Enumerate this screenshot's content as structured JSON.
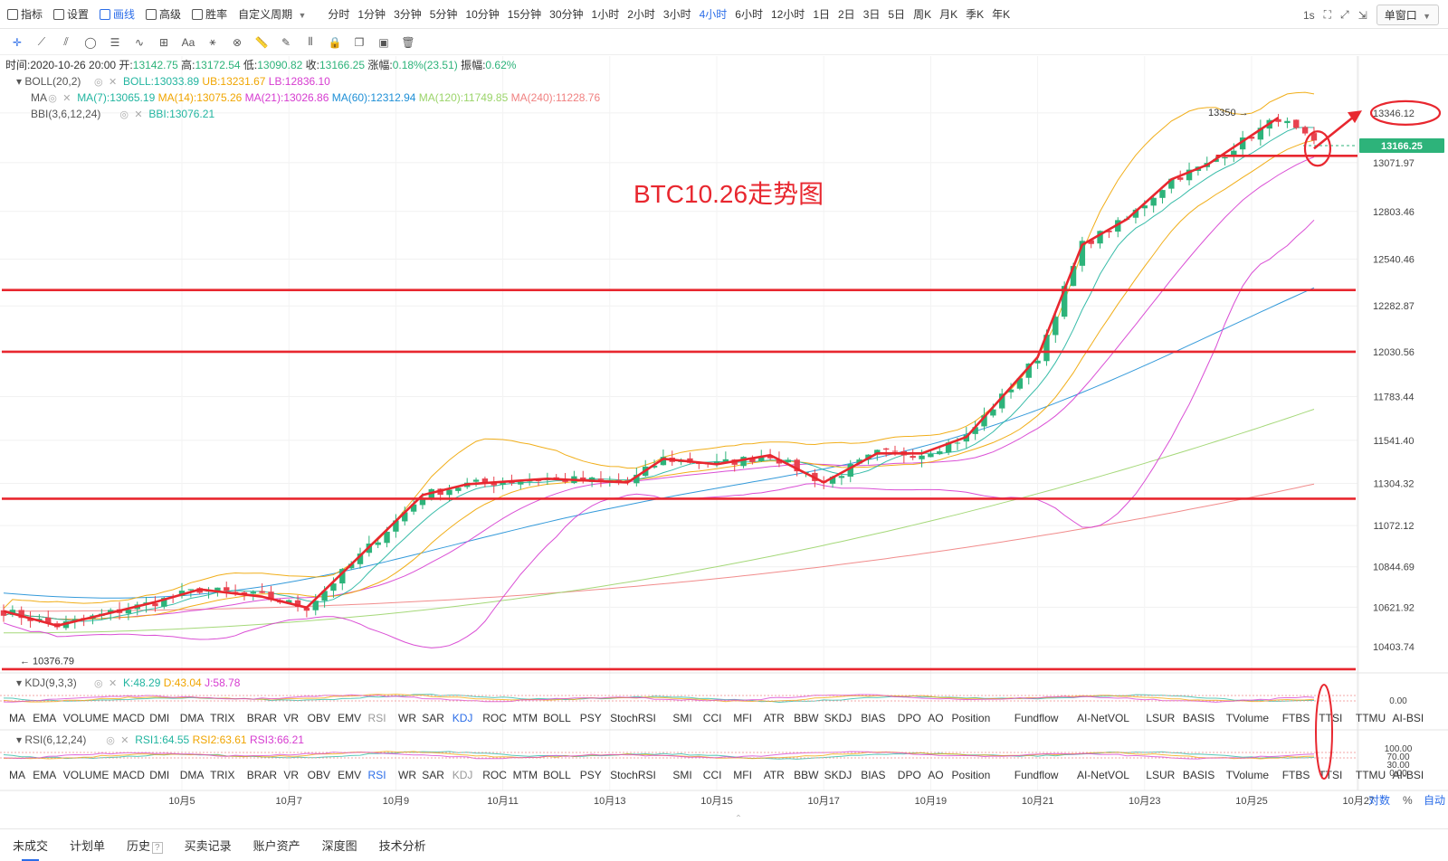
{
  "topbar": {
    "left_items": [
      {
        "label": "指标",
        "icon": "indicator-icon"
      },
      {
        "label": "设置",
        "icon": "gear-icon"
      },
      {
        "label": "画线",
        "icon": "pen-icon",
        "active": true
      },
      {
        "label": "高级",
        "icon": "calendar-icon"
      },
      {
        "label": "胜率",
        "icon": "clock-icon"
      }
    ],
    "custom_period": "自定义周期",
    "periods": [
      "分时",
      "1分钟",
      "3分钟",
      "5分钟",
      "10分钟",
      "15分钟",
      "30分钟",
      "1小时",
      "2小时",
      "3小时",
      "4小时",
      "6小时",
      "12小时",
      "1日",
      "2日",
      "3日",
      "5日",
      "周K",
      "月K",
      "季K",
      "年K"
    ],
    "active_period": "4小时",
    "refresh": "1s",
    "window_mode": "单窗口"
  },
  "legend": {
    "time_label": "时间:",
    "time": "2020-10-26 20:00",
    "open_label": "开:",
    "open": "13142.75",
    "high_label": "高:",
    "high": "13172.54",
    "low_label": "低:",
    "low": "13090.82",
    "close_label": "收:",
    "close": "13166.25",
    "change_label": "涨幅:",
    "change": "0.18%(23.51)",
    "amp_label": "振幅:",
    "amp": "0.62%",
    "boll": {
      "name": "BOLL(20,2)",
      "items": [
        {
          "text": "BOLL:13033.89",
          "color": "#22b5a0"
        },
        {
          "text": "UB:13231.67",
          "color": "#f0a500"
        },
        {
          "text": "LB:12836.10",
          "color": "#d63cd0"
        }
      ]
    },
    "ma": {
      "name": "MA",
      "items": [
        {
          "text": "MA(7):13065.19",
          "color": "#22b5a0"
        },
        {
          "text": "MA(14):13075.26",
          "color": "#f0a500"
        },
        {
          "text": "MA(21):13026.86",
          "color": "#d63cd0"
        },
        {
          "text": "MA(60):12312.94",
          "color": "#1e8fd6"
        },
        {
          "text": "MA(120):11749.85",
          "color": "#9bd46a"
        },
        {
          "text": "MA(240):11228.76",
          "color": "#f08080"
        }
      ]
    },
    "bbi": {
      "name": "BBI(3,6,12,24)",
      "items": [
        {
          "text": "BBI:13076.21",
          "color": "#22b5a0"
        }
      ]
    }
  },
  "annotation_title": "BTC10.26走势图",
  "colors": {
    "up": "#2db37a",
    "down": "#e8424f",
    "annotation": "#e8272f",
    "boll_up": "#f0a500",
    "boll_low": "#d63cd0",
    "ma60": "#1e8fd6",
    "ma120": "#9bd46a",
    "ma240": "#f08080"
  },
  "chart_data": {
    "type": "candlestick",
    "symbol": "BTC",
    "interval": "4小时",
    "y_ticks": [
      13346.12,
      13071.97,
      12803.46,
      12540.46,
      12282.87,
      12030.56,
      11783.44,
      11541.4,
      11304.32,
      11072.12,
      10844.69,
      10621.92,
      10403.74
    ],
    "y_tick_labels": [
      "13346.12",
      "13071.97",
      "12803.46",
      "12540.46",
      "12282.87",
      "12030.56",
      "11783.44",
      "11541.40",
      "11304.32",
      "11072.12",
      "10844.69",
      "10621.92",
      "10403.74"
    ],
    "ylim": [
      10230,
      13560
    ],
    "current_price": "13166.25",
    "current_price_value": 13166.25,
    "high_marker": {
      "label": "13350",
      "value": 13350
    },
    "low_marker": {
      "label": "10376.79",
      "value": 10376.79
    },
    "x_labels": [
      "10月5",
      "10月7",
      "10月9",
      "10月11",
      "10月13",
      "10月15",
      "10月17",
      "10月19",
      "10月21",
      "10月23",
      "10月25",
      "10月27"
    ],
    "x_label_bars": [
      24,
      36,
      48,
      60,
      72,
      84,
      96,
      108,
      120,
      132,
      144,
      156
    ],
    "n_bars": 148,
    "price_path_bars": [
      0,
      6,
      17,
      22,
      29,
      34,
      47,
      52,
      61,
      70,
      74,
      80,
      86,
      92,
      98,
      103,
      108,
      116,
      121,
      126,
      131,
      135,
      143,
      150,
      156,
      160
    ],
    "price_path_values": [
      10600,
      10520,
      10650,
      10720,
      10680,
      10620,
      11240,
      11300,
      11330,
      11310,
      11440,
      11410,
      11460,
      11310,
      11470,
      11470,
      11560,
      12000,
      12620,
      12760,
      12980,
      13060,
      13320,
      13060,
      13110,
      13166
    ],
    "support_levels": [
      12370,
      12030,
      11220,
      10280
    ],
    "support_level_labels": [],
    "target_label": "13346.12",
    "kdj": {
      "name": "KDJ(9,3,3)",
      "items": [
        {
          "text": "K:48.29",
          "color": "#22b5a0"
        },
        {
          "text": "D:43.04",
          "color": "#f0a500"
        },
        {
          "text": "J:58.78",
          "color": "#d63cd0"
        }
      ],
      "y_tick": "0.00"
    },
    "rsi": {
      "name": "RSI(6,12,24)",
      "items": [
        {
          "text": "RSI1:64.55",
          "color": "#22b5a0"
        },
        {
          "text": "RSI2:63.61",
          "color": "#f0a500"
        },
        {
          "text": "RSI3:66.21",
          "color": "#d63cd0"
        }
      ],
      "y_ticks": [
        "100.00",
        "70.00",
        "30.00",
        "0.00"
      ]
    },
    "indicator_tabs": [
      "MA",
      "EMA",
      "VOLUME",
      "MACD",
      "DMI",
      "DMA",
      "TRIX",
      "BRAR",
      "VR",
      "OBV",
      "EMV",
      "RSI",
      "WR",
      "SAR",
      "KDJ",
      "ROC",
      "MTM",
      "BOLL",
      "PSY",
      "StochRSI",
      "SMI",
      "CCI",
      "MFI",
      "ATR",
      "BBW",
      "SKDJ",
      "BIAS",
      "DPO",
      "AO",
      "Position",
      "Fundflow",
      "AI-NetVOL",
      "LSUR",
      "BASIS",
      "TVolume",
      "FTBS",
      "TTSI",
      "TTMU",
      "AI-BSI"
    ],
    "kdj_active_tab": "KDJ",
    "rsi_active_tab": "RSI"
  },
  "axis_modes": [
    "对数",
    "%",
    "自动"
  ],
  "bottom_tabs": [
    "未成交",
    "计划单",
    "历史",
    "买卖记录",
    "账户资产",
    "深度图",
    "技术分析"
  ]
}
